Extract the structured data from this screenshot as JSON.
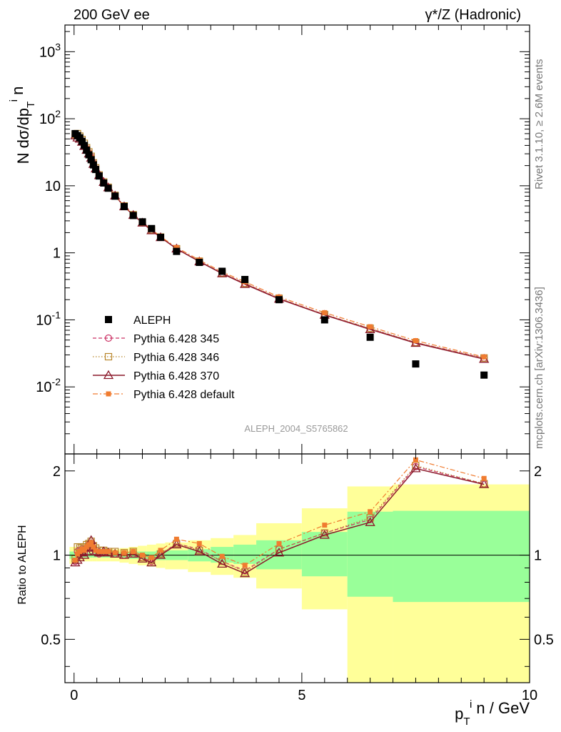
{
  "header": {
    "left_title": "200 GeV ee",
    "right_title": "γ*/Z (Hadronic)",
    "analysis_id": "ALEPH_2004_S5765862",
    "side_text_top": "Rivet 3.1.10, ≥ 2.6M events",
    "side_text_bottom": "mcplots.cern.ch [arXiv:1306.3436]"
  },
  "chart_data": [
    {
      "type": "scatter",
      "panel": "main",
      "yscale": "log",
      "ylabel": "N dσ/dp_T^i n",
      "xlim": [
        -0.2,
        10.0
      ],
      "ylim": [
        0.001,
        2500
      ],
      "y_ticklabels": [
        "10^-2",
        "10^-1",
        "1",
        "10",
        "10^2",
        "10^3"
      ],
      "legend": {
        "placement": "lower-left",
        "entries": [
          "ALEPH",
          "Pythia 6.428 345",
          "Pythia 6.428 346",
          "Pythia 6.428 370",
          "Pythia 6.428 default"
        ]
      },
      "x": [
        0.025,
        0.075,
        0.125,
        0.175,
        0.225,
        0.275,
        0.325,
        0.375,
        0.425,
        0.475,
        0.55,
        0.65,
        0.75,
        0.9,
        1.1,
        1.3,
        1.5,
        1.7,
        1.9,
        2.25,
        2.75,
        3.25,
        3.75,
        4.5,
        5.5,
        6.5,
        7.5,
        9.0
      ],
      "series": [
        {
          "name": "ALEPH",
          "color": "#000000",
          "marker": "square",
          "values": [
            60,
            56,
            52,
            46,
            40,
            34,
            29,
            24.5,
            20.5,
            17.5,
            14,
            11,
            9.2,
            7.0,
            4.9,
            3.6,
            2.9,
            2.3,
            1.7,
            1.05,
            0.72,
            0.53,
            0.4,
            0.2,
            0.1,
            0.055,
            0.022,
            0.015
          ]
        },
        {
          "name": "Pythia 6.428 345",
          "color": "#cc3366",
          "marker": "circle",
          "line": "dashed",
          "values": [
            57,
            55,
            52,
            47,
            40,
            36,
            31,
            27,
            21.5,
            18.0,
            14.2,
            11.2,
            9.4,
            7.1,
            4.9,
            3.65,
            2.8,
            2.2,
            1.72,
            1.15,
            0.75,
            0.5,
            0.35,
            0.21,
            0.12,
            0.074,
            0.046,
            0.027
          ]
        },
        {
          "name": "Pythia 6.428 346",
          "color": "#b8862b",
          "marker": "square-open",
          "line": "dotted",
          "values": [
            58,
            60,
            55,
            49,
            43,
            37,
            32,
            27.5,
            22,
            18.5,
            14.5,
            11.4,
            9.5,
            7.2,
            5.0,
            3.7,
            2.85,
            2.2,
            1.72,
            1.15,
            0.75,
            0.5,
            0.35,
            0.21,
            0.12,
            0.075,
            0.046,
            0.027
          ]
        },
        {
          "name": "Pythia 6.428 370",
          "color": "#8b1a2b",
          "marker": "triangle",
          "line": "solid",
          "values": [
            56,
            52,
            50,
            45,
            39,
            34,
            30,
            26,
            21,
            18,
            14.3,
            11.3,
            9.4,
            7.1,
            4.9,
            3.65,
            2.8,
            2.15,
            1.7,
            1.15,
            0.74,
            0.49,
            0.34,
            0.205,
            0.118,
            0.072,
            0.045,
            0.026
          ]
        },
        {
          "name": "Pythia 6.428 default",
          "color": "#f07c30",
          "marker": "square-small",
          "line": "dashdot",
          "values": [
            57,
            56,
            52,
            47,
            41,
            36,
            31,
            26.5,
            21.5,
            18,
            14.4,
            11.3,
            9.5,
            7.1,
            4.95,
            3.7,
            2.85,
            2.25,
            1.75,
            1.2,
            0.78,
            0.52,
            0.37,
            0.22,
            0.128,
            0.079,
            0.049,
            0.028
          ]
        }
      ]
    },
    {
      "type": "scatter",
      "panel": "ratio",
      "ylabel": "Ratio to ALEPH",
      "xlabel": "p_T^i n / GeV",
      "xlim": [
        -0.2,
        10.0
      ],
      "ylim": [
        0.35,
        2.3
      ],
      "x_ticklabels": [
        "0",
        "5",
        "10"
      ],
      "y_ticklabels": [
        "0.5",
        "1",
        "2"
      ],
      "reference_line": 1.0,
      "bands": {
        "edges": [
          -0.1,
          0.05,
          0.1,
          0.15,
          0.2,
          0.25,
          0.3,
          0.35,
          0.4,
          0.45,
          0.5,
          0.6,
          0.7,
          0.8,
          1.0,
          1.2,
          1.4,
          1.6,
          1.8,
          2.0,
          2.5,
          3.0,
          3.5,
          4.0,
          5.0,
          6.0,
          7.0,
          10.0
        ],
        "stat_low": [
          0.97,
          0.98,
          0.98,
          0.98,
          0.98,
          0.98,
          0.98,
          0.98,
          0.98,
          0.98,
          0.98,
          0.98,
          0.98,
          0.98,
          0.98,
          0.97,
          0.97,
          0.97,
          0.96,
          0.96,
          0.95,
          0.94,
          0.93,
          0.89,
          0.84,
          0.71,
          0.68
        ],
        "stat_high": [
          1.03,
          1.02,
          1.02,
          1.02,
          1.02,
          1.02,
          1.02,
          1.02,
          1.02,
          1.02,
          1.02,
          1.02,
          1.02,
          1.02,
          1.02,
          1.03,
          1.03,
          1.03,
          1.04,
          1.04,
          1.05,
          1.07,
          1.09,
          1.13,
          1.21,
          1.43,
          1.44
        ],
        "syst_low": [
          0.93,
          0.95,
          0.95,
          0.95,
          0.95,
          0.95,
          0.95,
          0.95,
          0.95,
          0.95,
          0.95,
          0.95,
          0.95,
          0.95,
          0.94,
          0.93,
          0.92,
          0.91,
          0.9,
          0.89,
          0.87,
          0.85,
          0.83,
          0.76,
          0.64,
          0.35,
          0.35
        ],
        "syst_high": [
          1.07,
          1.05,
          1.05,
          1.05,
          1.05,
          1.05,
          1.05,
          1.05,
          1.05,
          1.05,
          1.05,
          1.05,
          1.05,
          1.05,
          1.06,
          1.07,
          1.08,
          1.09,
          1.1,
          1.11,
          1.13,
          1.15,
          1.18,
          1.3,
          1.47,
          1.76,
          1.79
        ],
        "stat_color": "#99ff99",
        "syst_color": "#ffff99"
      },
      "series": [
        {
          "name": "Pythia 6.428 345",
          "color": "#cc3366",
          "marker": "circle",
          "line": "dashed",
          "values": [
            0.95,
            1.03,
            1.04,
            1.05,
            1.02,
            1.06,
            1.09,
            1.1,
            1.06,
            1.03,
            1.01,
            1.02,
            1.02,
            1.01,
            1.0,
            1.01,
            0.98,
            0.95,
            1.01,
            1.1,
            1.05,
            0.95,
            0.88,
            1.05,
            1.2,
            1.34,
            2.07,
            1.8
          ]
        },
        {
          "name": "Pythia 6.428 346",
          "color": "#b8862b",
          "marker": "square-open",
          "line": "dotted",
          "values": [
            0.97,
            1.07,
            1.06,
            1.07,
            1.07,
            1.09,
            1.1,
            1.12,
            1.08,
            1.06,
            1.04,
            1.04,
            1.03,
            1.03,
            1.02,
            1.03,
            0.98,
            0.96,
            1.01,
            1.1,
            1.04,
            0.95,
            0.87,
            1.05,
            1.2,
            1.36,
            2.09,
            1.8
          ]
        },
        {
          "name": "Pythia 6.428 370",
          "color": "#8b1a2b",
          "marker": "triangle",
          "line": "solid",
          "values": [
            0.94,
            0.96,
            0.98,
            1.02,
            1.0,
            1.03,
            1.06,
            1.13,
            1.07,
            1.03,
            1.02,
            1.03,
            1.02,
            1.01,
            1.0,
            1.01,
            0.97,
            0.94,
            1.0,
            1.09,
            1.03,
            0.93,
            0.86,
            1.02,
            1.18,
            1.31,
            2.04,
            1.79
          ]
        },
        {
          "name": "Pythia 6.428 default",
          "color": "#f07c30",
          "marker": "square-small",
          "line": "dashdot",
          "values": [
            0.96,
            1.01,
            1.03,
            1.05,
            1.04,
            1.07,
            1.09,
            1.11,
            1.07,
            1.04,
            1.03,
            1.03,
            1.03,
            1.02,
            1.02,
            1.03,
            1.0,
            0.98,
            1.04,
            1.14,
            1.1,
            0.99,
            0.92,
            1.1,
            1.28,
            1.43,
            2.19,
            1.88
          ]
        }
      ]
    }
  ]
}
